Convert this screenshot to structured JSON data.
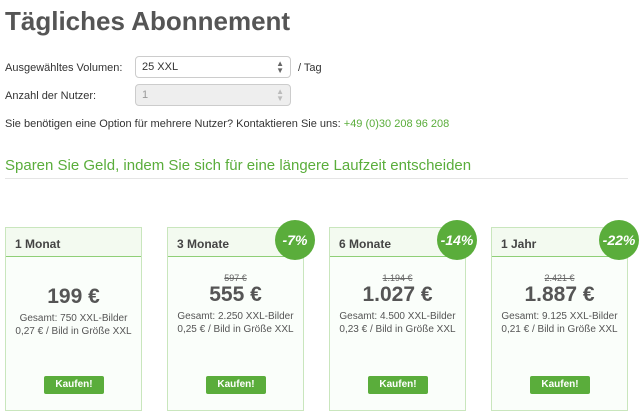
{
  "title": "Tägliches Abonnement",
  "form": {
    "volume_label": "Ausgewähltes Volumen:",
    "volume_value": "25 XXL",
    "volume_suffix": "/ Tag",
    "users_label": "Anzahl der Nutzer:",
    "users_value": "1"
  },
  "contact": {
    "text": "Sie benötigen eine Option für mehrere Nutzer? Kontaktieren Sie uns:",
    "phone": "+49 (0)30 208 96 208"
  },
  "section_title": "Sparen Sie Geld, indem Sie sich für eine längere Laufzeit entscheiden",
  "accent": "#5aad3b",
  "plans": [
    {
      "name": "1 Monat",
      "old_price": "",
      "price": "199 €",
      "badge": "",
      "total": "Gesamt: 750 XXL-Bilder",
      "unit": "0,27 € / Bild in Größe XXL",
      "button": "Kaufen!"
    },
    {
      "name": "3 Monate",
      "old_price": "597 €",
      "price": "555 €",
      "badge": "-7%",
      "total": "Gesamt: 2.250 XXL-Bilder",
      "unit": "0,25 € / Bild in Größe XXL",
      "button": "Kaufen!"
    },
    {
      "name": "6 Monate",
      "old_price": "1.194 €",
      "price": "1.027 €",
      "badge": "-14%",
      "total": "Gesamt: 4.500 XXL-Bilder",
      "unit": "0,23 € / Bild in Größe XXL",
      "button": "Kaufen!"
    },
    {
      "name": "1 Jahr",
      "old_price": "2.421 €",
      "price": "1.887 €",
      "badge": "-22%",
      "total": "Gesamt: 9.125 XXL-Bilder",
      "unit": "0,21 € / Bild in Größe XXL",
      "button": "Kaufen!"
    }
  ]
}
